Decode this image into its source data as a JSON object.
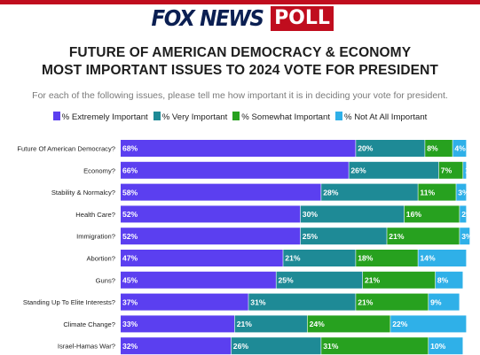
{
  "header": {
    "logo_text": "FOX NEWS",
    "logo_badge": "POLL",
    "title_line1": "FUTURE OF AMERICAN DEMOCRACY & ECONOMY",
    "title_line2": "MOST IMPORTANT ISSUES TO 2024 VOTE FOR PRESIDENT",
    "subtitle": "For each of the following issues, please tell me how important it is in deciding your vote for president."
  },
  "colors": {
    "brand_red": "#c00d1e",
    "brand_navy": "#0b1f52"
  },
  "chart_data": {
    "type": "bar",
    "orientation": "horizontal",
    "stacked": true,
    "unit": "%",
    "categories": [
      "Future Of American Democracy?",
      "Economy?",
      "Stability & Normalcy?",
      "Health Care?",
      "Immigration?",
      "Abortion?",
      "Guns?",
      "Standing Up To Elite Interests?",
      "Climate Change?",
      "Israel-Hamas War?"
    ],
    "series": [
      {
        "name": "% Extremely Important",
        "color": "#5b3ff0",
        "values": [
          68,
          66,
          58,
          52,
          52,
          47,
          45,
          37,
          33,
          32
        ]
      },
      {
        "name": "% Very Important",
        "color": "#1e8a96",
        "values": [
          20,
          26,
          28,
          30,
          25,
          21,
          25,
          31,
          21,
          26
        ]
      },
      {
        "name": "% Somewhat Important",
        "color": "#27a11f",
        "values": [
          8,
          7,
          11,
          16,
          21,
          18,
          21,
          21,
          24,
          31
        ]
      },
      {
        "name": "% Not At All Important",
        "color": "#2fb0e8",
        "values": [
          4,
          1,
          3,
          2,
          3,
          14,
          8,
          9,
          22,
          10
        ]
      }
    ],
    "xlim": [
      0,
      100
    ],
    "legend_position": "top",
    "grid": false
  }
}
